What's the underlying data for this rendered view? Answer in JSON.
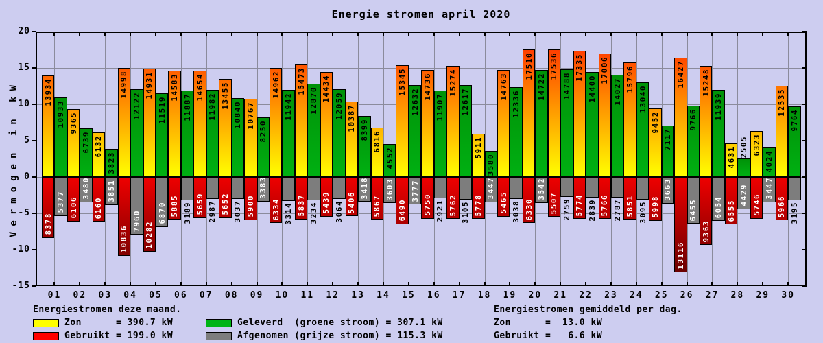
{
  "title": "Energie stromen april 2020",
  "chart_data": {
    "type": "bar",
    "title": "Energie stromen april 2020",
    "ylabel": "Vermogen in kW",
    "ylim": [
      -15,
      20
    ],
    "y_ticks": [
      "20",
      "15",
      "10",
      "5",
      "0",
      "-5",
      "-10",
      "-15"
    ],
    "grid": "on",
    "value_scale": 0.001,
    "inside_label_min_value": 3350,
    "categories": [
      "01",
      "02",
      "03",
      "04",
      "05",
      "06",
      "07",
      "08",
      "09",
      "10",
      "11",
      "12",
      "13",
      "14",
      "15",
      "16",
      "17",
      "18",
      "19",
      "20",
      "21",
      "22",
      "23",
      "24",
      "25",
      "26",
      "27",
      "28",
      "29",
      "30"
    ],
    "series": [
      {
        "name": "Zon",
        "direction": "up",
        "values": [
          13934,
          9365,
          6132,
          14998,
          14931,
          14583,
          14654,
          13455,
          10767,
          14962,
          15473,
          14434,
          10387,
          6816,
          15345,
          14736,
          15274,
          5911,
          14763,
          17510,
          17536,
          17335,
          17006,
          15796,
          9452,
          16427,
          15248,
          4631,
          6323,
          12535
        ]
      },
      {
        "name": "Geleverd (groene stroom)",
        "direction": "up",
        "values": [
          10933,
          6739,
          3823,
          12122,
          11519,
          11887,
          11982,
          10840,
          8250,
          11942,
          12870,
          12059,
          8399,
          4552,
          12632,
          11907,
          12617,
          3580,
          12336,
          14722,
          14788,
          14400,
          14027,
          13040,
          7117,
          9766,
          11939,
          2505,
          4024,
          9764
        ]
      },
      {
        "name": "Gebruikt",
        "direction": "down",
        "values": [
          8378,
          6106,
          6160,
          10836,
          10282,
          5885,
          5659,
          5652,
          5900,
          6334,
          5837,
          5439,
          5406,
          5867,
          6490,
          5750,
          5762,
          5778,
          5465,
          6330,
          5507,
          5774,
          5766,
          5851,
          5998,
          13116,
          9363,
          6555,
          5746,
          5966
        ]
      },
      {
        "name": "Afgenomen (grijze stroom)",
        "direction": "down",
        "values": [
          5377,
          3480,
          3851,
          7960,
          6870,
          3189,
          2987,
          3037,
          3383,
          3314,
          3234,
          3064,
          3418,
          3603,
          3777,
          2921,
          3105,
          3447,
          3038,
          3542,
          2759,
          2839,
          2787,
          3095,
          3663,
          6455,
          6054,
          4429,
          3447,
          3195
        ]
      }
    ],
    "colors": {
      "zon_top_max": "#ff3e00",
      "zon_bottom": "#ffff00",
      "geleverd_top": "#009208",
      "geleverd_bottom": "#00b012",
      "gebruikt_top": "#ee0000",
      "gebruikt_deep": "#580000",
      "afgenomen": "#7d7d7d",
      "background": "#cdcdf0",
      "gridline": "#8b8b9c"
    }
  },
  "legend": {
    "left_header": "Energiestromen deze maand.",
    "right_header": "Energiestromen gemiddeld per dag.",
    "rows_left": [
      {
        "swatch": "#ffff00",
        "text": "Zon      = 390.7 kW"
      },
      {
        "swatch": "#ff0000",
        "text": "Gebruikt = 199.0 kW"
      }
    ],
    "rows_mid": [
      {
        "swatch": "#00b414",
        "text": "Geleverd  (groene stroom) = 307.1 kW"
      },
      {
        "swatch": "#7d7d7d",
        "text": "Afgenomen (grijze stroom) = 115.3 kW"
      }
    ],
    "rows_right": [
      {
        "text": "Zon      =  13.0 kW"
      },
      {
        "text": "Gebruikt =   6.6 kW"
      }
    ]
  }
}
